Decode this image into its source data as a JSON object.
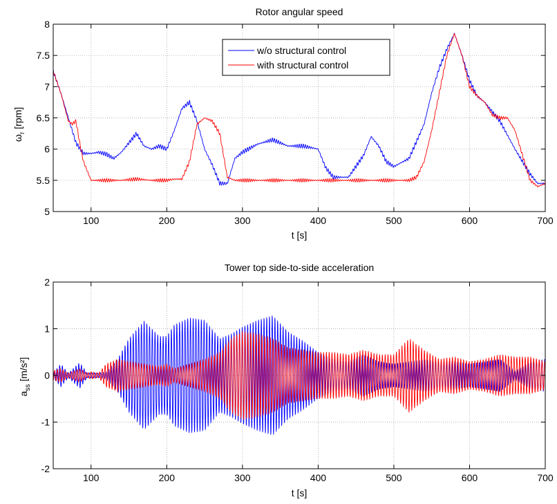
{
  "chart_data": [
    {
      "type": "line",
      "title": "Rotor angular speed",
      "xlabel": "t [s]",
      "ylabel_symbol": "ω",
      "ylabel_sub": "r",
      "ylabel_unit": "[rpm]",
      "xlim": [
        50,
        700
      ],
      "ylim": [
        5,
        8
      ],
      "xticks": [
        100,
        200,
        300,
        400,
        500,
        600,
        700
      ],
      "yticks": [
        5,
        5.5,
        6,
        6.5,
        7,
        7.5,
        8
      ],
      "ytick_labels": [
        "5",
        "5.5",
        "6",
        "6.5",
        "7",
        "7.5",
        "8"
      ],
      "grid": true,
      "legend": "top-center",
      "series": [
        {
          "name": "w/o structural control",
          "color": "#0000ff",
          "ripple": 0.035,
          "x": [
            50,
            60,
            70,
            80,
            90,
            100,
            110,
            120,
            130,
            140,
            150,
            160,
            170,
            180,
            190,
            200,
            210,
            220,
            230,
            240,
            250,
            260,
            270,
            280,
            290,
            300,
            320,
            340,
            360,
            380,
            400,
            410,
            420,
            440,
            460,
            470,
            480,
            490,
            500,
            520,
            540,
            550,
            560,
            570,
            580,
            590,
            600,
            610,
            620,
            640,
            660,
            680,
            690,
            700
          ],
          "y": [
            7.25,
            6.9,
            6.5,
            6.1,
            5.93,
            5.93,
            5.95,
            5.92,
            5.85,
            5.95,
            6.1,
            6.25,
            6.05,
            6.0,
            6.05,
            6.0,
            6.3,
            6.65,
            6.75,
            6.45,
            6.0,
            5.75,
            5.45,
            5.45,
            5.85,
            5.95,
            6.08,
            6.15,
            6.05,
            6.05,
            6.0,
            5.7,
            5.55,
            5.55,
            5.9,
            6.2,
            6.05,
            5.8,
            5.72,
            5.85,
            6.4,
            6.9,
            7.3,
            7.6,
            7.85,
            7.5,
            7.1,
            6.85,
            6.75,
            6.45,
            6.0,
            5.6,
            5.45,
            5.45
          ]
        },
        {
          "name": "with structural control",
          "color": "#ff0000",
          "ripple": 0.03,
          "x": [
            50,
            60,
            70,
            75,
            80,
            85,
            90,
            100,
            120,
            140,
            160,
            180,
            200,
            210,
            220,
            230,
            240,
            250,
            260,
            270,
            280,
            290,
            320,
            360,
            400,
            440,
            480,
            520,
            530,
            540,
            550,
            560,
            570,
            580,
            590,
            600,
            610,
            620,
            630,
            640,
            650,
            660,
            670,
            680,
            690,
            700
          ],
          "y": [
            7.25,
            6.9,
            6.45,
            6.4,
            6.45,
            6.1,
            5.8,
            5.5,
            5.5,
            5.5,
            5.52,
            5.5,
            5.5,
            5.52,
            5.52,
            5.8,
            6.4,
            6.5,
            6.45,
            6.25,
            5.55,
            5.5,
            5.5,
            5.5,
            5.5,
            5.5,
            5.5,
            5.5,
            5.55,
            5.8,
            6.3,
            6.9,
            7.5,
            7.85,
            7.5,
            7.0,
            6.85,
            6.75,
            6.55,
            6.5,
            6.5,
            6.3,
            5.9,
            5.5,
            5.4,
            5.45
          ]
        }
      ]
    },
    {
      "type": "line",
      "title": "Tower top side-to-side acceleration",
      "xlabel": "t [s]",
      "ylabel_symbol": "a",
      "ylabel_sub": "ss",
      "ylabel_unit": "[m/s²]",
      "xlim": [
        50,
        700
      ],
      "ylim": [
        -2,
        2
      ],
      "xticks": [
        100,
        200,
        300,
        400,
        500,
        600,
        700
      ],
      "yticks": [
        -2,
        -1,
        0,
        1,
        2
      ],
      "ytick_labels": [
        "-2",
        "-1",
        "0",
        "1",
        "2"
      ],
      "grid": true,
      "series": [
        {
          "name": "w/o structural control",
          "color": "#0000ff",
          "period": 3.6,
          "envelope_t": [
            50,
            60,
            70,
            85,
            95,
            100,
            110,
            120,
            135,
            150,
            170,
            190,
            200,
            210,
            230,
            250,
            270,
            285,
            300,
            320,
            340,
            360,
            380,
            400,
            420,
            440,
            460,
            480,
            500,
            520,
            540,
            560,
            580,
            600,
            620,
            640,
            660,
            680,
            700
          ],
          "envelope_a": [
            0.05,
            0.25,
            0.05,
            0.28,
            0.05,
            0.06,
            0.05,
            0.08,
            0.35,
            0.8,
            1.18,
            0.85,
            0.85,
            1.1,
            1.25,
            1.2,
            0.8,
            0.9,
            1.05,
            1.2,
            1.3,
            0.95,
            0.75,
            0.5,
            0.35,
            0.3,
            0.45,
            0.3,
            0.25,
            0.3,
            0.35,
            0.3,
            0.3,
            0.25,
            0.3,
            0.35,
            0.1,
            0.3,
            0.35
          ]
        },
        {
          "name": "with structural control",
          "color": "#ff0000",
          "period": 3.7,
          "envelope_t": [
            50,
            60,
            70,
            85,
            95,
            100,
            110,
            120,
            135,
            150,
            170,
            190,
            200,
            210,
            230,
            250,
            270,
            285,
            300,
            320,
            340,
            360,
            380,
            400,
            420,
            440,
            460,
            480,
            500,
            520,
            540,
            560,
            580,
            600,
            620,
            640,
            660,
            680,
            700
          ],
          "envelope_a": [
            0.1,
            0.15,
            0.05,
            0.15,
            0.05,
            0.08,
            0.05,
            0.25,
            0.35,
            0.3,
            0.25,
            0.2,
            0.25,
            0.15,
            0.25,
            0.35,
            0.5,
            0.8,
            0.95,
            0.9,
            0.8,
            0.6,
            0.55,
            0.5,
            0.5,
            0.45,
            0.55,
            0.45,
            0.45,
            0.8,
            0.55,
            0.35,
            0.4,
            0.3,
            0.35,
            0.45,
            0.4,
            0.4,
            0.3
          ]
        }
      ]
    }
  ]
}
